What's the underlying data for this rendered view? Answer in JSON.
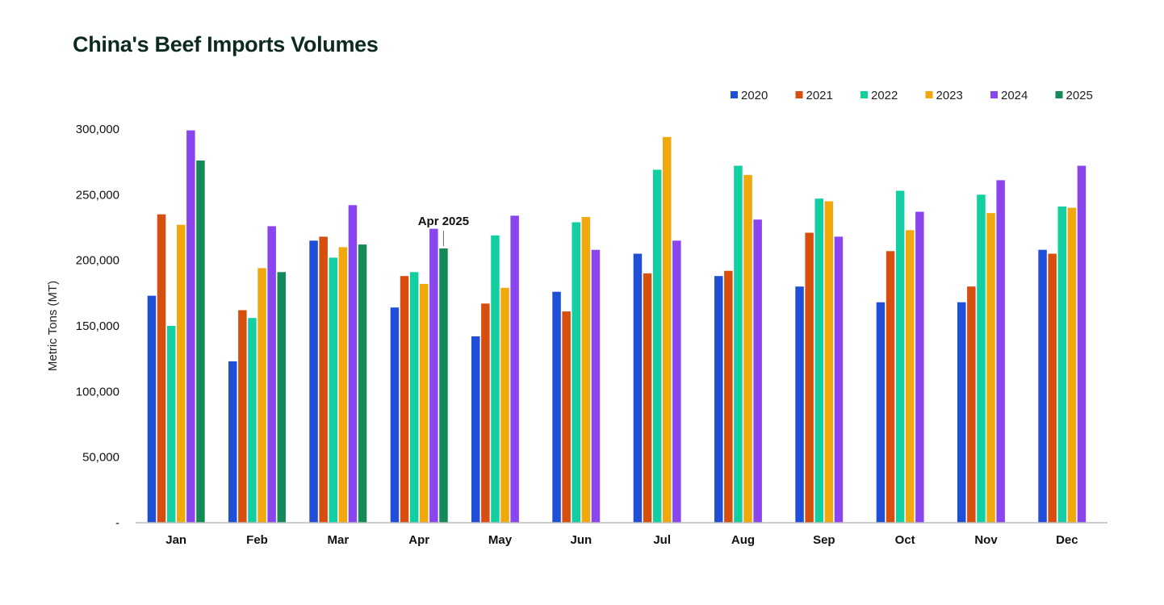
{
  "chart_data": {
    "type": "bar",
    "title": "China's Beef Imports Volumes",
    "xlabel": "",
    "ylabel": "Metric Tons (MT)",
    "ylim": [
      0,
      300000
    ],
    "yticks": [
      0,
      50000,
      100000,
      150000,
      200000,
      250000,
      300000
    ],
    "ytick_labels": [
      "-",
      "50,000",
      "100,000",
      "150,000",
      "200,000",
      "250,000",
      "300,000"
    ],
    "legend_position": "top-right",
    "grid": false,
    "categories": [
      "Jan",
      "Feb",
      "Mar",
      "Apr",
      "May",
      "Jun",
      "Jul",
      "Aug",
      "Sep",
      "Oct",
      "Nov",
      "Dec"
    ],
    "series": [
      {
        "name": "2020",
        "color": "#1f4fd6",
        "values": [
          173000,
          123000,
          215000,
          164000,
          142000,
          176000,
          205000,
          188000,
          180000,
          168000,
          168000,
          208000
        ]
      },
      {
        "name": "2021",
        "color": "#d64f0e",
        "values": [
          235000,
          162000,
          218000,
          188000,
          167000,
          161000,
          190000,
          192000,
          221000,
          207000,
          180000,
          205000
        ]
      },
      {
        "name": "2022",
        "color": "#12cfa1",
        "values": [
          150000,
          156000,
          202000,
          191000,
          219000,
          229000,
          269000,
          272000,
          247000,
          253000,
          250000,
          241000
        ]
      },
      {
        "name": "2023",
        "color": "#f0a80c",
        "values": [
          227000,
          194000,
          210000,
          182000,
          179000,
          233000,
          294000,
          265000,
          245000,
          223000,
          236000,
          240000
        ]
      },
      {
        "name": "2024",
        "color": "#8a45ef",
        "values": [
          299000,
          226000,
          242000,
          224000,
          234000,
          208000,
          215000,
          231000,
          218000,
          237000,
          261000,
          272000
        ]
      },
      {
        "name": "2025",
        "color": "#138a57",
        "values": [
          276000,
          191000,
          212000,
          209000,
          null,
          null,
          null,
          null,
          null,
          null,
          null,
          null
        ]
      }
    ],
    "annotations": [
      {
        "text": "Apr 2025",
        "category": "Apr",
        "series": "2025"
      }
    ]
  }
}
